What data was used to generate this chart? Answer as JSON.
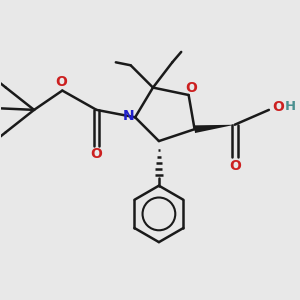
{
  "background_color": "#e8e8e8",
  "bond_color": "#1a1a1a",
  "N_color": "#2020cc",
  "O_color": "#cc2020",
  "H_color": "#4a9090",
  "figsize": [
    3.0,
    3.0
  ],
  "dpi": 100,
  "xlim": [
    0,
    10
  ],
  "ylim": [
    0,
    10
  ]
}
